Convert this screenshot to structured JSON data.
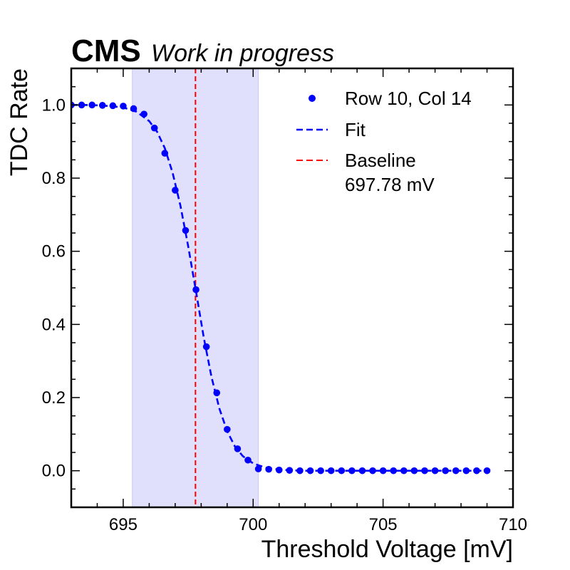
{
  "header": {
    "experiment": "CMS",
    "status": "Work in progress"
  },
  "chart_data": {
    "type": "scatter",
    "xlabel": "Threshold Voltage [mV]",
    "ylabel": "TDC Rate",
    "xlim": [
      693,
      710
    ],
    "ylim": [
      -0.1,
      1.1
    ],
    "xticks": [
      695,
      700,
      705,
      710
    ],
    "xtick_labels": [
      "695",
      "700",
      "705",
      "710"
    ],
    "yticks": [
      0.0,
      0.2,
      0.4,
      0.6,
      0.8,
      1.0
    ],
    "ytick_labels": [
      "0.0",
      "0.2",
      "0.4",
      "0.6",
      "0.8",
      "1.0"
    ],
    "grid": false,
    "legend_position": "top-right",
    "band": {
      "x0": 695.35,
      "x1": 700.2,
      "color": "#e0e0fc"
    },
    "baseline": {
      "x": 697.78,
      "color": "#ff0000"
    },
    "series": [
      {
        "name": "Row 10, Col 14",
        "kind": "points",
        "color": "#0000ff",
        "x": [
          693,
          693.4,
          693.8,
          694.2,
          694.6,
          695.0,
          695.4,
          695.8,
          696.2,
          696.6,
          697.0,
          697.4,
          697.8,
          698.2,
          698.6,
          699.0,
          699.4,
          699.8,
          700.2,
          700.6,
          701.0,
          701.4,
          701.8,
          702.2,
          702.6,
          703.0,
          703.4,
          703.8,
          704.2,
          704.6,
          705.0,
          705.4,
          705.8,
          706.2,
          706.6,
          707.0,
          707.4,
          707.8,
          708.2,
          708.6,
          709.0
        ],
        "y": [
          1.0,
          1.0,
          1.0,
          0.999,
          0.998,
          0.997,
          0.99,
          0.975,
          0.937,
          0.868,
          0.767,
          0.657,
          0.495,
          0.339,
          0.213,
          0.113,
          0.06,
          0.029,
          0.005,
          0.004,
          0.002,
          0.001,
          0.0,
          0.0,
          0.0,
          0.0,
          0.0,
          0.0,
          0.0,
          0.0,
          0.0,
          0.0,
          0.0,
          0.0,
          0.0,
          0.0,
          0.0,
          0.0,
          0.0,
          0.0,
          0.0
        ]
      },
      {
        "name": "Fit",
        "kind": "dashed-line",
        "color": "#0000ff",
        "x": [
          693,
          693.5,
          694,
          694.5,
          695,
          695.5,
          696,
          696.3,
          696.6,
          696.9,
          697.2,
          697.5,
          697.8,
          698.1,
          698.4,
          698.7,
          699.0,
          699.3,
          699.6,
          700.0,
          700.5,
          701.0,
          701.5,
          702,
          703,
          705,
          707,
          709
        ],
        "y": [
          1.0,
          1.0,
          0.999,
          0.997,
          0.993,
          0.982,
          0.956,
          0.927,
          0.882,
          0.815,
          0.725,
          0.614,
          0.49,
          0.364,
          0.256,
          0.17,
          0.108,
          0.066,
          0.04,
          0.02,
          0.008,
          0.003,
          0.001,
          0.0,
          0.0,
          0.0,
          0.0,
          0.0
        ]
      }
    ],
    "legend": [
      {
        "label": "Row 10, Col 14",
        "marker": "point",
        "color": "#0000ff"
      },
      {
        "label": "Fit",
        "marker": "dashed",
        "color": "#0000ff"
      },
      {
        "label": "Baseline",
        "label2": "697.78 mV",
        "marker": "dashed",
        "color": "#ff0000"
      }
    ]
  }
}
